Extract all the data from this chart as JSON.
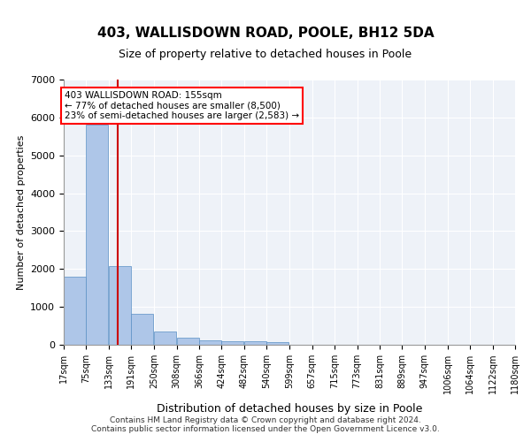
{
  "title1": "403, WALLISDOWN ROAD, POOLE, BH12 5DA",
  "title2": "Size of property relative to detached houses in Poole",
  "xlabel": "Distribution of detached houses by size in Poole",
  "ylabel": "Number of detached properties",
  "footer1": "Contains HM Land Registry data © Crown copyright and database right 2024.",
  "footer2": "Contains public sector information licensed under the Open Government Licence v3.0.",
  "annotation_line1": "403 WALLISDOWN ROAD: 155sqm",
  "annotation_line2": "← 77% of detached houses are smaller (8,500)",
  "annotation_line3": "23% of semi-detached houses are larger (2,583) →",
  "bar_color": "#aec6e8",
  "bar_edge_color": "#5a8fc4",
  "red_line_color": "#cc0000",
  "background_color": "#eef2f8",
  "bins": [
    17,
    75,
    133,
    191,
    250,
    308,
    366,
    424,
    482,
    540,
    599,
    657,
    715,
    773,
    831,
    889,
    947,
    1006,
    1064,
    1122,
    1180
  ],
  "bin_labels": [
    "17sqm",
    "75sqm",
    "133sqm",
    "191sqm",
    "250sqm",
    "308sqm",
    "366sqm",
    "424sqm",
    "482sqm",
    "540sqm",
    "599sqm",
    "657sqm",
    "715sqm",
    "773sqm",
    "831sqm",
    "889sqm",
    "947sqm",
    "1006sqm",
    "1064sqm",
    "1122sqm",
    "1180sqm"
  ],
  "values": [
    1790,
    5820,
    2070,
    820,
    340,
    195,
    120,
    105,
    85,
    65,
    0,
    0,
    0,
    0,
    0,
    0,
    0,
    0,
    0,
    0
  ],
  "red_line_x": 155,
  "ylim": [
    0,
    7000
  ],
  "yticks": [
    0,
    1000,
    2000,
    3000,
    4000,
    5000,
    6000,
    7000
  ]
}
